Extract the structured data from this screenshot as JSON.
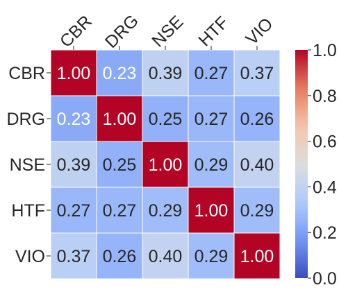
{
  "chart_data": {
    "type": "heatmap",
    "title": "",
    "xlabel": "",
    "ylabel": "",
    "x_labels": [
      "CBR",
      "DRG",
      "NSE",
      "HTF",
      "VIO"
    ],
    "y_labels": [
      "CBR",
      "DRG",
      "NSE",
      "HTF",
      "VIO"
    ],
    "values": [
      [
        1.0,
        0.23,
        0.39,
        0.27,
        0.37
      ],
      [
        0.23,
        1.0,
        0.25,
        0.27,
        0.26
      ],
      [
        0.39,
        0.25,
        1.0,
        0.29,
        0.4
      ],
      [
        0.27,
        0.27,
        0.29,
        1.0,
        0.29
      ],
      [
        0.37,
        0.26,
        0.4,
        0.29,
        1.0
      ]
    ],
    "value_format": "0.00",
    "colormap": "coolwarm",
    "vmin": 0.0,
    "vmax": 1.0,
    "colorbar": {
      "ticks": [
        0.0,
        0.2,
        0.4,
        0.6,
        0.8,
        1.0
      ],
      "tick_labels": [
        "0.0",
        "0.2",
        "0.4",
        "0.6",
        "0.8",
        "1.0"
      ]
    },
    "x_tick_rotation": "45 degrees",
    "grid": false,
    "colors": {
      "cmap_stops": [
        "#3b4cc0",
        "#7396f5",
        "#b0cbfc",
        "#dddddd",
        "#f5c4ac",
        "#e67b60",
        "#b40426"
      ],
      "cell_border": "#ffffff",
      "text_dark": "#262626",
      "text_light": "#ffffff"
    }
  }
}
